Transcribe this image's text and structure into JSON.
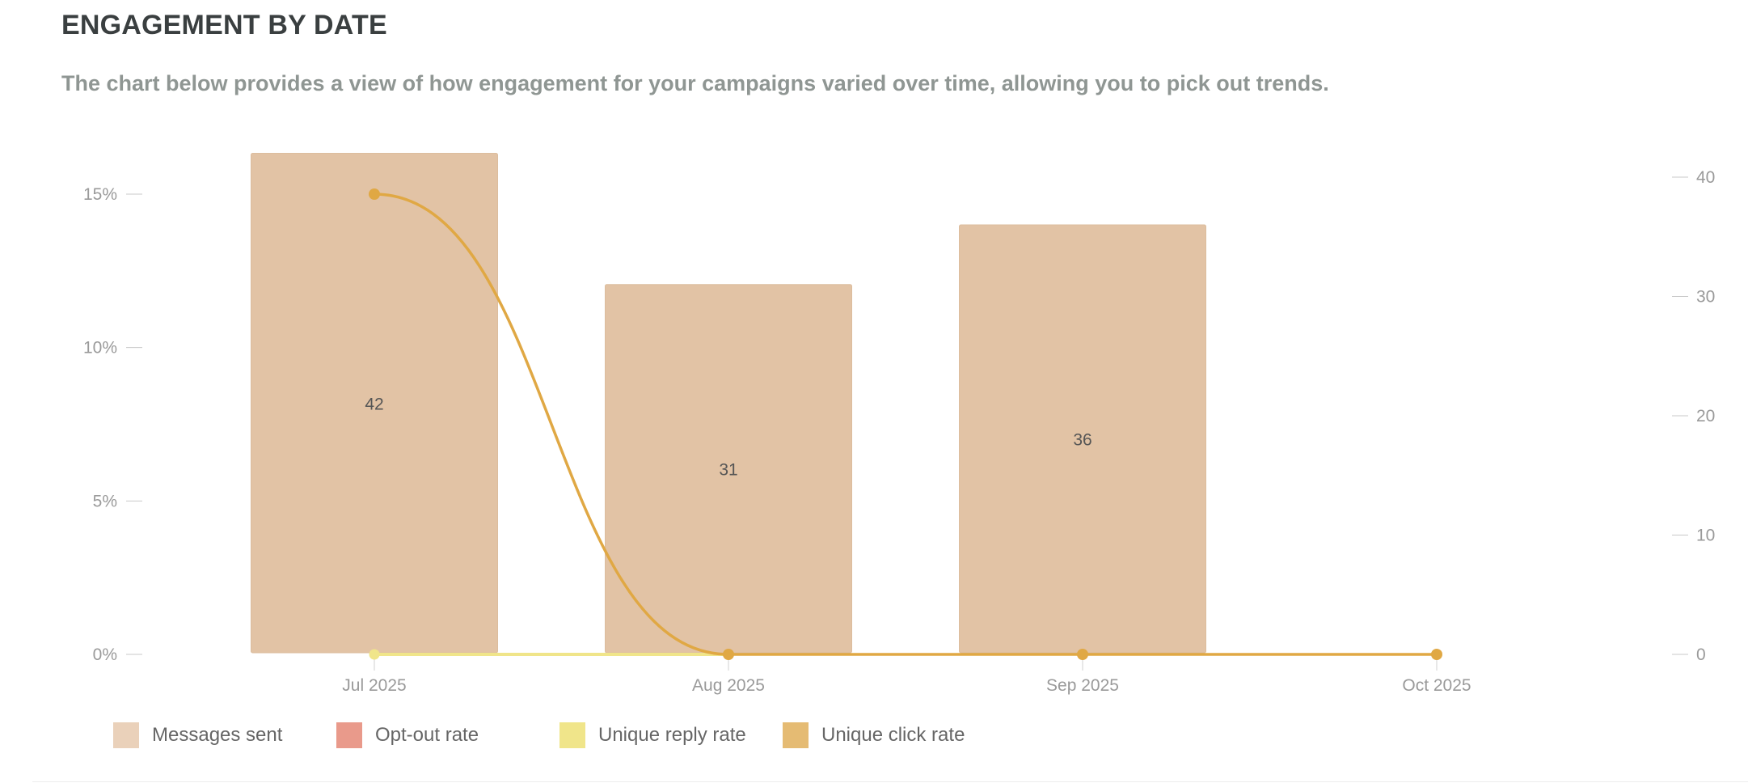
{
  "header": {
    "title": "ENGAGEMENT BY DATE",
    "subtitle": "The chart below provides a view of how engagement for your campaigns varied over time, allowing you to pick out trends."
  },
  "chart_data": {
    "type": "bar",
    "categories": [
      "Jul 2025",
      "Aug 2025",
      "Sep 2025",
      "Oct 2025"
    ],
    "series": [
      {
        "name": "Messages sent",
        "kind": "bar",
        "axis": "right",
        "values": [
          42,
          31,
          36,
          null
        ],
        "color": "#e2c3a5"
      },
      {
        "name": "Opt-out rate",
        "kind": "line",
        "axis": "left",
        "values": [
          null,
          null,
          null,
          null
        ],
        "color": "#e99a8b"
      },
      {
        "name": "Unique reply rate",
        "kind": "line",
        "axis": "left",
        "values": [
          0,
          0,
          0,
          0
        ],
        "color": "#f0e58a"
      },
      {
        "name": "Unique click rate",
        "kind": "line",
        "axis": "left",
        "values": [
          15,
          0,
          0,
          0
        ],
        "color": "#e0a844"
      }
    ],
    "y_left": {
      "ticks": [
        0,
        5,
        10,
        15
      ],
      "tick_labels": [
        "0%",
        "5%",
        "10%",
        "15%"
      ],
      "range": [
        0,
        16.5
      ]
    },
    "y_right": {
      "ticks": [
        0,
        10,
        20,
        30,
        40
      ],
      "tick_labels": [
        "0",
        "10",
        "20",
        "30",
        "40"
      ],
      "range": [
        0,
        42
      ]
    },
    "grid": false,
    "legend_position": "bottom-left"
  }
}
